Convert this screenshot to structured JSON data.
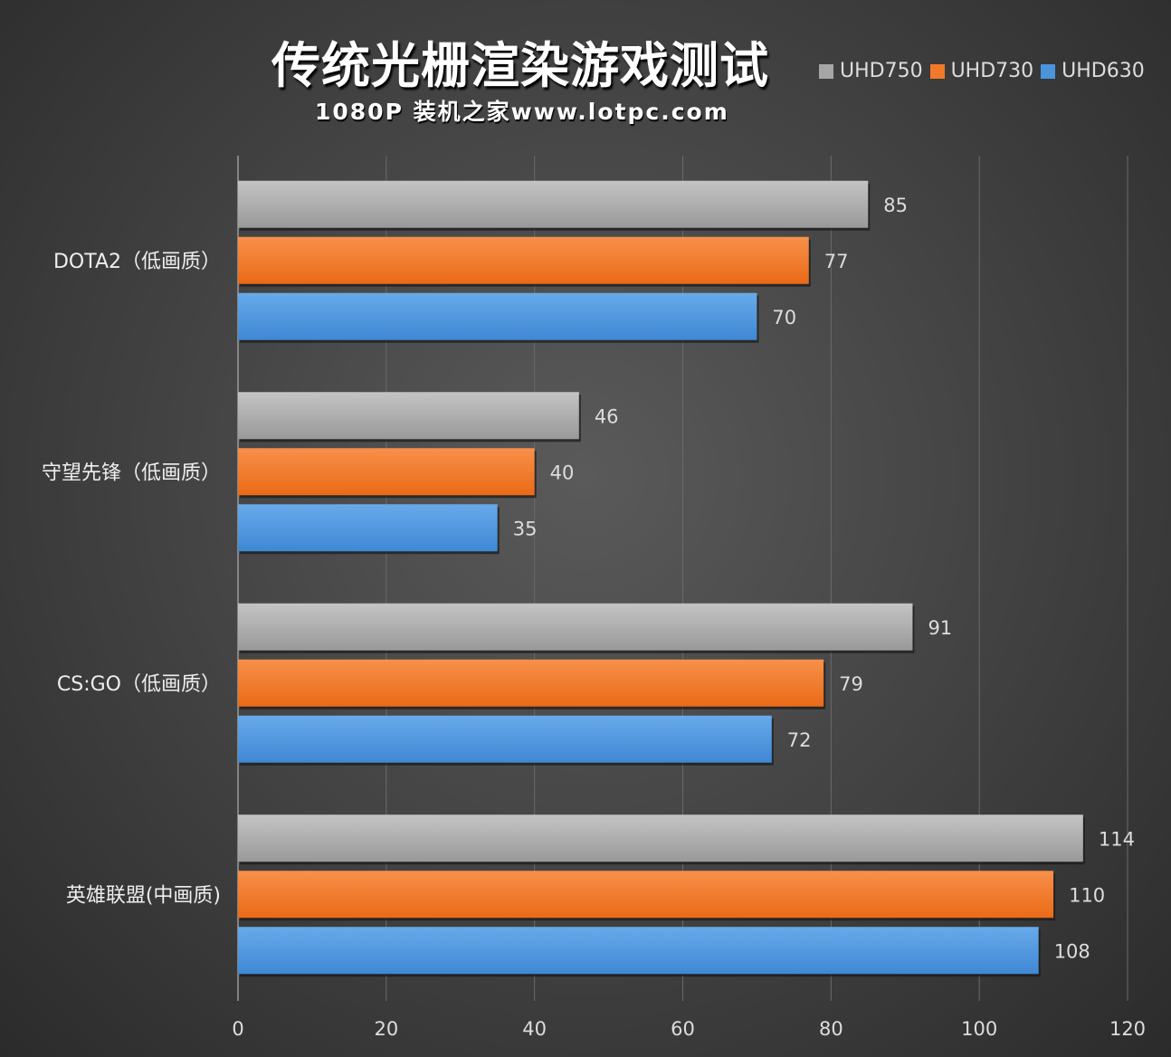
{
  "chart_data": {
    "type": "bar",
    "orientation": "horizontal",
    "title": "传统光栅渲染游戏测试",
    "subtitle": "1080P 装机之家www.lotpc.com",
    "categories": [
      "DOTA2（低画质）",
      "守望先锋（低画质）",
      "CS:GO（低画质）",
      "英雄联盟(中画质)"
    ],
    "series": [
      {
        "name": "UHD750",
        "color": "#a6a6a6",
        "values": [
          85,
          46,
          91,
          114
        ]
      },
      {
        "name": "UHD730",
        "color": "#f07a2a",
        "values": [
          77,
          40,
          79,
          110
        ]
      },
      {
        "name": "UHD630",
        "color": "#4a94dc",
        "values": [
          70,
          35,
          72,
          108
        ]
      }
    ],
    "xlim": [
      0,
      120
    ],
    "xticks": [
      0,
      20,
      40,
      60,
      80,
      100,
      120
    ],
    "grid": true,
    "legend_position": "top-right",
    "data_labels": true
  }
}
